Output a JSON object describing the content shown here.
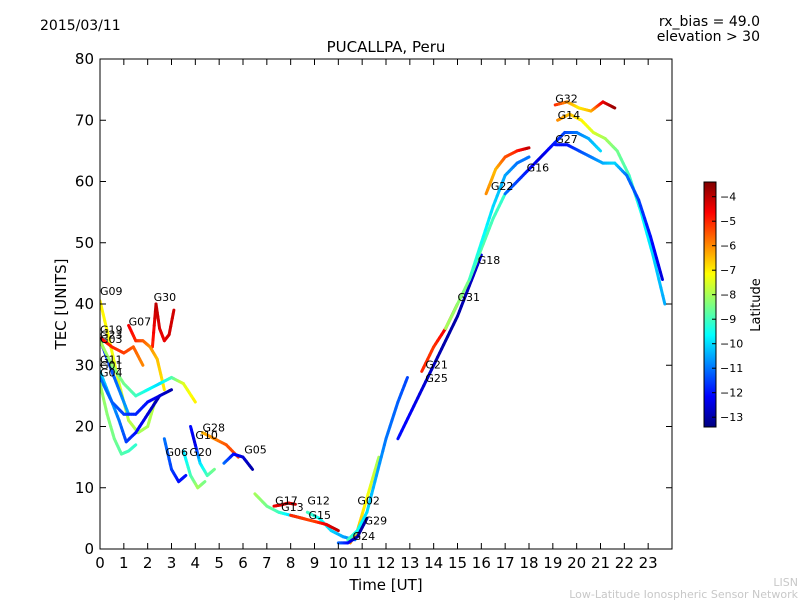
{
  "header": {
    "date": "2015/03/11",
    "rx_bias": "rx_bias = 49.0",
    "elevation": "elevation > 30"
  },
  "footer": {
    "line1": "LISN",
    "line2": "Low-Latitude Ionospheric Sensor Network"
  },
  "chart_data": {
    "type": "line",
    "title": "PUCALLPA, Peru",
    "xlabel": "Time [UT]",
    "ylabel": "TEC [UNITS]",
    "xlim": [
      0,
      24
    ],
    "ylim": [
      0,
      80
    ],
    "xticks": [
      "0",
      "1",
      "2",
      "3",
      "4",
      "5",
      "6",
      "7",
      "8",
      "9",
      "10",
      "11",
      "12",
      "13",
      "14",
      "15",
      "16",
      "17",
      "18",
      "19",
      "20",
      "21",
      "22",
      "23"
    ],
    "yticks": [
      "0",
      "10",
      "20",
      "30",
      "40",
      "50",
      "60",
      "70",
      "80"
    ],
    "grid": false,
    "colorbar": {
      "label": "Latitude",
      "min": -13.4,
      "max": -3.4,
      "ticks": [
        "−4",
        "−5",
        "−6",
        "−7",
        "−8",
        "−9",
        "−10",
        "−11",
        "−12",
        "−13"
      ],
      "tick_values": [
        -4,
        -5,
        -6,
        -7,
        -8,
        -9,
        -10,
        -11,
        -12,
        -13
      ]
    },
    "series": [
      {
        "name": "G09",
        "label_at": [
          0.0,
          41.5
        ],
        "x": [
          0.0,
          0.4,
          0.8,
          1.2,
          1.6,
          2.0,
          2.3
        ],
        "y": [
          40.5,
          34,
          27,
          21,
          19,
          20,
          24
        ],
        "lat": [
          -7.0,
          -7.2,
          -7.5,
          -7.8,
          -8,
          -8,
          -7.8
        ]
      },
      {
        "name": "G30",
        "label_at": [
          2.25,
          40.5
        ],
        "x": [
          2.2,
          2.35,
          2.5,
          2.7,
          2.9,
          3.1
        ],
        "y": [
          33,
          40,
          36,
          34,
          35,
          39
        ],
        "lat": [
          -5,
          -4,
          -4.3,
          -4.5,
          -4.2,
          -4.2
        ]
      },
      {
        "name": "G07",
        "label_at": [
          1.2,
          36.5
        ],
        "x": [
          1.2,
          1.5,
          1.8,
          2.1,
          2.4,
          2.7
        ],
        "y": [
          36.5,
          34,
          34,
          33,
          31,
          26
        ],
        "lat": [
          -4.5,
          -5,
          -5.5,
          -6,
          -6.5,
          -7
        ]
      },
      {
        "name": "G19",
        "label_at": [
          0.0,
          35.2
        ],
        "x": [
          0.0,
          0.5,
          1.0,
          1.4,
          1.8
        ],
        "y": [
          34.5,
          33,
          32,
          33,
          30
        ],
        "lat": [
          -4.5,
          -5,
          -5.2,
          -5.5,
          -6
        ]
      },
      {
        "name": "G23",
        "label_at": [
          0.0,
          34.4
        ],
        "x": [
          0.0,
          0.4,
          0.8,
          1.2
        ],
        "y": [
          34.2,
          30,
          26,
          22
        ],
        "lat": [
          -12,
          -11.5,
          -11,
          -10.5
        ]
      },
      {
        "name": "G03",
        "label_at": [
          0.0,
          33.6
        ],
        "x": [
          0.0,
          0.5,
          1.0,
          1.5,
          2.0,
          2.5,
          3.0,
          3.5,
          4.0
        ],
        "y": [
          34,
          30,
          27,
          25,
          26,
          27,
          28,
          27,
          24
        ],
        "lat": [
          -8,
          -8.2,
          -8.5,
          -9,
          -9.5,
          -10,
          -9,
          -7.5,
          -7
        ]
      },
      {
        "name": "G11",
        "label_at": [
          0.0,
          30.3
        ],
        "x": [
          0.0,
          0.4,
          0.8,
          1.1,
          1.5,
          2.0,
          2.5
        ],
        "y": [
          29,
          25,
          21,
          17.5,
          19,
          22,
          25
        ],
        "lat": [
          -10,
          -10.5,
          -11,
          -11.5,
          -12,
          -12.5,
          -13
        ]
      },
      {
        "name": "G01",
        "label_at": [
          0.0,
          29.4
        ],
        "x": [
          0.0,
          0.5,
          1.0,
          1.5,
          2.0,
          2.5,
          3.0
        ],
        "y": [
          28,
          24,
          22,
          22,
          24,
          25,
          26
        ],
        "lat": [
          -11,
          -11.2,
          -11.5,
          -11.8,
          -12,
          -12.5,
          -13
        ]
      },
      {
        "name": "G04",
        "label_at": [
          0.0,
          28.2
        ],
        "x": [
          0.0,
          0.3,
          0.6,
          0.9,
          1.2,
          1.5
        ],
        "y": [
          27,
          22,
          18,
          15.5,
          16,
          17
        ],
        "lat": [
          -8,
          -8.3,
          -8.5,
          -8.8,
          -9,
          -9.2
        ]
      },
      {
        "name": "G28",
        "label_at": [
          4.3,
          19.2
        ],
        "x": [
          4.3,
          4.8,
          5.3,
          5.8
        ],
        "y": [
          19,
          18,
          17,
          15
        ],
        "lat": [
          -6.5,
          -6,
          -5.5,
          -5.2
        ]
      },
      {
        "name": "G10",
        "label_at": [
          4.0,
          18.0
        ],
        "x": [
          3.8,
          4.0,
          4.2,
          4.5,
          4.8
        ],
        "y": [
          20,
          17,
          14,
          12,
          13
        ],
        "lat": [
          -12,
          -12.5,
          -10,
          -9,
          -8.5
        ]
      },
      {
        "name": "G06",
        "label_at": [
          2.75,
          15.2
        ],
        "x": [
          2.7,
          3.0,
          3.3,
          3.6
        ],
        "y": [
          18,
          13,
          11,
          12
        ],
        "lat": [
          -11,
          -11.5,
          -12,
          -12
        ]
      },
      {
        "name": "G20",
        "label_at": [
          3.75,
          15.2
        ],
        "x": [
          3.5,
          3.8,
          4.1,
          4.4
        ],
        "y": [
          16,
          12,
          10,
          11
        ],
        "lat": [
          -10,
          -9,
          -8,
          -8.5
        ]
      },
      {
        "name": "G05",
        "label_at": [
          6.05,
          15.6
        ],
        "x": [
          5.2,
          5.6,
          6.0,
          6.4
        ],
        "y": [
          14,
          15.5,
          15,
          13
        ],
        "lat": [
          -11,
          -12,
          -12.5,
          -13
        ]
      },
      {
        "name": "G17",
        "label_at": [
          7.35,
          7.3
        ],
        "x": [
          7.3,
          7.6,
          7.9,
          8.2
        ],
        "y": [
          7,
          7.2,
          7.5,
          7.3
        ],
        "lat": [
          -4.5,
          -4.3,
          -4.2,
          -4
        ]
      },
      {
        "name": "G13",
        "label_at": [
          7.6,
          6.2
        ],
        "x": [
          6.5,
          7.0,
          7.5,
          8.0,
          8.5
        ],
        "y": [
          9,
          7,
          6,
          5.5,
          5
        ],
        "lat": [
          -8,
          -8.5,
          -9,
          -10,
          -11
        ]
      },
      {
        "name": "G12",
        "label_at": [
          8.7,
          7.3
        ],
        "x": [
          8.7,
          9.2,
          9.7,
          10.2,
          10.7
        ],
        "y": [
          6,
          5,
          3,
          2,
          1.5
        ],
        "lat": [
          -9,
          -9.5,
          -10,
          -10.5,
          -11
        ]
      },
      {
        "name": "G15",
        "label_at": [
          8.75,
          4.9
        ],
        "x": [
          8.0,
          8.5,
          9.0,
          9.5,
          10.0
        ],
        "y": [
          5.5,
          5,
          4.5,
          4,
          3
        ],
        "lat": [
          -5,
          -5.2,
          -5.3,
          -4.5,
          -4
        ]
      },
      {
        "name": "G02",
        "label_at": [
          10.8,
          7.3
        ],
        "x": [
          10.5,
          10.8,
          11.1,
          11.4,
          11.7
        ],
        "y": [
          1,
          3,
          7,
          11,
          15
        ],
        "lat": [
          -6,
          -6.5,
          -7,
          -7.5,
          -8
        ]
      },
      {
        "name": "G29",
        "label_at": [
          11.1,
          4.0
        ],
        "x": [
          10.4,
          10.8,
          11.2,
          11.6,
          12.0,
          12.5,
          12.9
        ],
        "y": [
          1.5,
          3,
          6,
          12,
          18,
          24,
          28
        ],
        "lat": [
          -9,
          -9.5,
          -10,
          -10.5,
          -11,
          -11.2,
          -11.5
        ]
      },
      {
        "name": "G24",
        "label_at": [
          10.6,
          1.5
        ],
        "x": [
          10.0,
          10.4,
          10.8,
          11.2
        ],
        "y": [
          1,
          1,
          2,
          5
        ],
        "lat": [
          -11,
          -12,
          -13,
          -13
        ]
      },
      {
        "name": "G21",
        "label_at": [
          13.65,
          29.5
        ],
        "x": [
          13.5,
          14.0,
          14.5,
          15.0
        ],
        "y": [
          29,
          33,
          36,
          40
        ],
        "lat": [
          -5,
          -5.2,
          -4.5,
          -4
        ]
      },
      {
        "name": "G25",
        "label_at": [
          13.65,
          27.3
        ],
        "x": [
          12.5,
          13.0,
          13.5,
          14.0,
          14.5,
          15.0,
          15.5,
          16.0
        ],
        "y": [
          18,
          22,
          26,
          30,
          34,
          38,
          43,
          48
        ],
        "lat": [
          -12,
          -12.2,
          -12.5,
          -12.8,
          -13,
          -13,
          -12.8,
          -12.5
        ]
      },
      {
        "name": "G31",
        "label_at": [
          15.0,
          40.5
        ],
        "x": [
          14.5,
          15.0,
          15.5,
          16.0,
          16.5,
          17.0
        ],
        "y": [
          36,
          40,
          44,
          49,
          54,
          58
        ],
        "lat": [
          -8,
          -8.2,
          -8.5,
          -8.8,
          -9,
          -9.2
        ]
      },
      {
        "name": "G18",
        "label_at": [
          15.85,
          46.5
        ],
        "x": [
          15.5,
          16.0,
          16.5,
          17.0,
          17.5,
          18.0
        ],
        "y": [
          44,
          50,
          56,
          61,
          63,
          64
        ],
        "lat": [
          -9,
          -9.5,
          -10,
          -10.5,
          -11,
          -11
        ]
      },
      {
        "name": "G22",
        "label_at": [
          16.4,
          58.6
        ],
        "x": [
          16.2,
          16.6,
          17.0,
          17.5,
          18.0
        ],
        "y": [
          58,
          62,
          64,
          65,
          65.5
        ],
        "lat": [
          -6,
          -6.5,
          -5.5,
          -5,
          -4
        ]
      },
      {
        "name": "G16",
        "label_at": [
          17.9,
          61.6
        ],
        "x": [
          17.0,
          17.5,
          18.0,
          18.5,
          19.0,
          19.5,
          20.0,
          20.5,
          21.0
        ],
        "y": [
          58,
          60,
          62,
          64,
          66,
          68,
          68,
          67,
          65
        ],
        "lat": [
          -11,
          -11.5,
          -12,
          -12.5,
          -12,
          -11.5,
          -11,
          -10.5,
          -10
        ]
      },
      {
        "name": "G32",
        "label_at": [
          19.1,
          72.9
        ],
        "x": [
          19.1,
          19.6,
          20.1,
          20.6,
          21.1,
          21.6
        ],
        "y": [
          72.5,
          73,
          72,
          71.5,
          73,
          72
        ],
        "lat": [
          -5,
          -6,
          -7,
          -6.5,
          -4.5,
          -3.6
        ]
      },
      {
        "name": "G14",
        "label_at": [
          19.2,
          70.2
        ],
        "x": [
          19.2,
          19.7,
          20.2,
          20.7,
          21.2,
          21.7,
          22.2,
          22.7,
          23.2,
          23.7
        ],
        "y": [
          70,
          71,
          70,
          68,
          67,
          65,
          61,
          55,
          48,
          40
        ],
        "lat": [
          -6,
          -6.5,
          -7,
          -7.5,
          -8,
          -8.5,
          -9,
          -9.5,
          -10,
          -10.5
        ]
      },
      {
        "name": "G27",
        "label_at": [
          19.1,
          66.3
        ],
        "x": [
          19.1,
          19.6,
          20.1,
          20.6,
          21.1,
          21.6,
          22.1,
          22.6,
          23.1,
          23.6
        ],
        "y": [
          66,
          66,
          65,
          64,
          63,
          63,
          61,
          57,
          51,
          44
        ],
        "lat": [
          -12,
          -12,
          -11.5,
          -11,
          -10.5,
          -10,
          -11,
          -11.5,
          -12,
          -12.5
        ]
      }
    ]
  }
}
